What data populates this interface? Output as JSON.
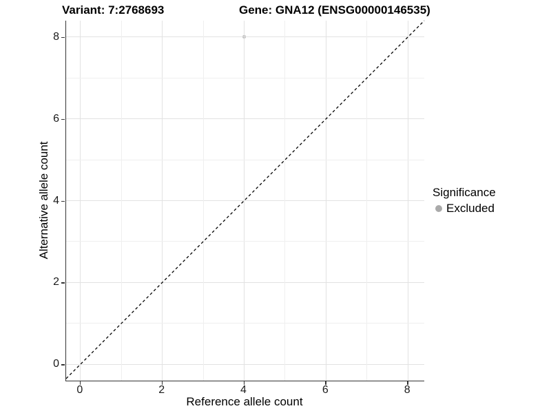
{
  "chart_data": {
    "type": "scatter",
    "titles": {
      "variant": "Variant: 7:2768693",
      "gene": "Gene: GNA12 (ENSG00000146535)"
    },
    "xlabel": "Reference allele count",
    "ylabel": "Alternative allele count",
    "xlim": [
      -0.35,
      8.4
    ],
    "ylim": [
      -0.4,
      8.4
    ],
    "x_major_ticks": [
      0,
      2,
      4,
      6,
      8
    ],
    "y_major_ticks": [
      0,
      2,
      4,
      6,
      8
    ],
    "x_minor_ticks": [
      1,
      3,
      5,
      7
    ],
    "y_minor_ticks": [
      1,
      3,
      5,
      7
    ],
    "grid": true,
    "points": [
      {
        "x": 4,
        "y": 8,
        "series": "Excluded"
      }
    ],
    "reference_line": {
      "kind": "identity",
      "equation": "y = x",
      "style": "dashed",
      "color": "#000000"
    },
    "legend": {
      "title": "Significance",
      "position": "right",
      "items": [
        {
          "label": "Excluded",
          "marker": "dot",
          "color": "#aaaaaa"
        }
      ]
    },
    "colors": {
      "point": "#b3b3b3",
      "legend_dot": "#aaaaaa",
      "grid_major": "#e2e2e2",
      "grid_minor": "#efefef",
      "axis_line": "#333333",
      "background": "#ffffff"
    }
  }
}
